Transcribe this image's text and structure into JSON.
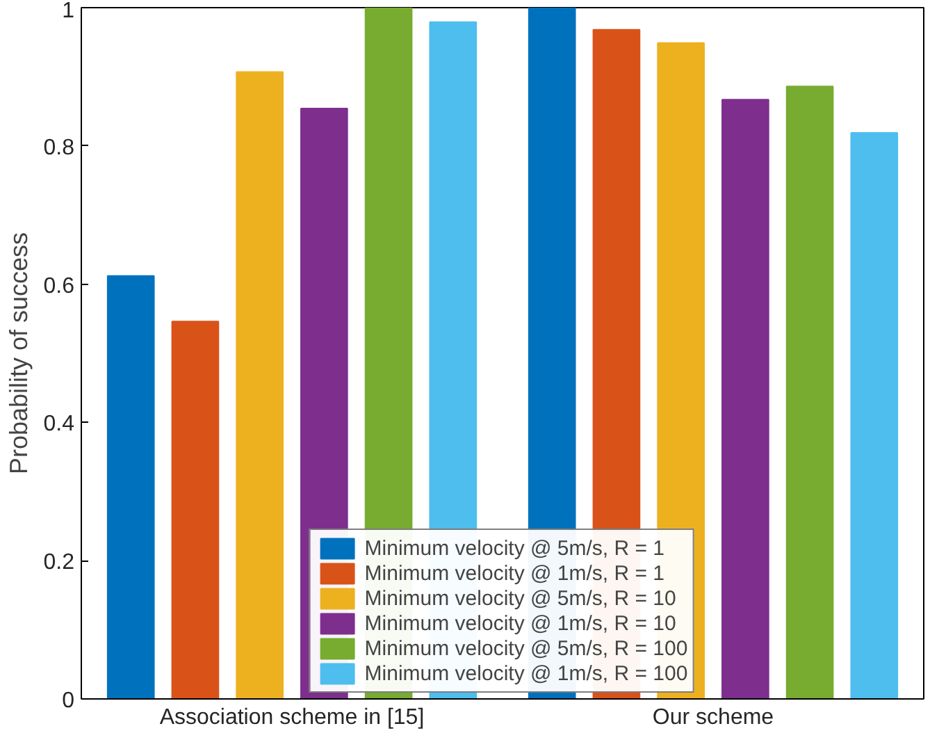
{
  "chart_data": {
    "type": "bar",
    "ylabel": "Probability of success",
    "categories": [
      "Association scheme in [15]",
      "Our scheme"
    ],
    "series": [
      {
        "name": "Minimum velocity @ 5m/s, R = 1",
        "color": "#0072bd",
        "values": [
          0.612,
          1.0
        ]
      },
      {
        "name": "Minimum velocity @ 1m/s, R = 1",
        "color": "#d95319",
        "values": [
          0.546,
          0.968
        ]
      },
      {
        "name": "Minimum velocity @ 5m/s, R = 10",
        "color": "#edb120",
        "values": [
          0.907,
          0.949
        ]
      },
      {
        "name": "Minimum velocity @ 1m/s, R = 10",
        "color": "#7e2f8e",
        "values": [
          0.854,
          0.867
        ]
      },
      {
        "name": "Minimum velocity @ 5m/s, R = 100",
        "color": "#77ac30",
        "values": [
          1.0,
          0.886
        ]
      },
      {
        "name": "Minimum velocity @ 1m/s, R = 100",
        "color": "#4dbeee",
        "values": [
          0.979,
          0.819
        ]
      }
    ],
    "ylim": [
      0,
      1
    ],
    "yticks": [
      0,
      0.2,
      0.4,
      0.6,
      0.8,
      1
    ],
    "grid": false,
    "legend": "bottom"
  }
}
